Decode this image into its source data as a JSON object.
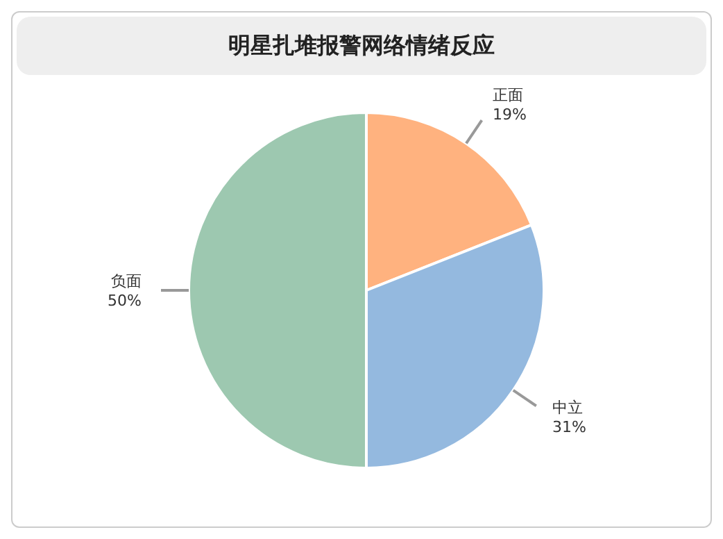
{
  "chart_data": {
    "type": "pie",
    "title": "明星扎堆报警网络情绪反应",
    "categories": [
      "正面",
      "中立",
      "负面"
    ],
    "values": [
      19,
      31,
      50
    ],
    "colors": [
      "#ffb27f",
      "#94b9df",
      "#9dc8b0"
    ],
    "value_labels": [
      "19%",
      "31%",
      "50%"
    ]
  }
}
